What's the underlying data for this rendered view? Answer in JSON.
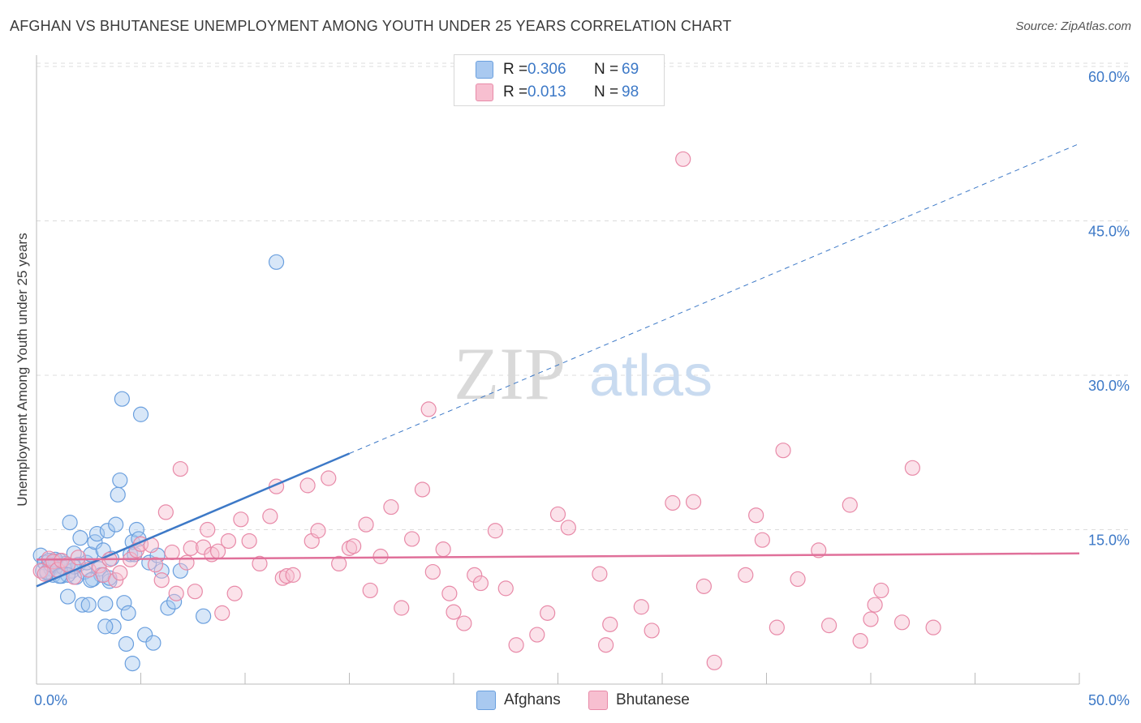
{
  "header": {
    "title": "AFGHAN VS BHUTANESE UNEMPLOYMENT AMONG YOUTH UNDER 25 YEARS CORRELATION CHART",
    "source": "Source: ZipAtlas.com"
  },
  "watermark": {
    "zip": "ZIP",
    "atlas": "atlas"
  },
  "legend": {
    "series": [
      {
        "r_label": "R =",
        "r_value": "0.306",
        "n_label": "N =",
        "n_value": "69",
        "name": "Afghans",
        "fill": "#a9c9f0",
        "stroke": "#6a9fde"
      },
      {
        "r_label": "R =",
        "r_value": "0.013",
        "n_label": "N =",
        "n_value": "98",
        "name": "Bhutanese",
        "fill": "#f7bfd0",
        "stroke": "#e88aa8"
      }
    ]
  },
  "chart_data": {
    "type": "scatter",
    "title": "AFGHAN VS BHUTANESE UNEMPLOYMENT AMONG YOUTH UNDER 25 YEARS CORRELATION CHART",
    "xlabel": "",
    "ylabel": "Unemployment Among Youth under 25 years",
    "xlim": [
      0,
      50
    ],
    "ylim": [
      0,
      60
    ],
    "x_tick_labels": [
      "0.0%",
      "50.0%"
    ],
    "y_ticks": [
      15,
      30,
      45,
      60
    ],
    "y_tick_labels": [
      "15.0%",
      "30.0%",
      "45.0%",
      "60.0%"
    ],
    "grid": true,
    "legend_placement": "top-center",
    "series": [
      {
        "name": "Afghans",
        "color": "#3d79c7",
        "trend": {
          "x": [
            0,
            50
          ],
          "y": [
            9.5,
            52.5
          ],
          "solid_until_x": 15
        },
        "points": [
          [
            0.2,
            12.5
          ],
          [
            0.3,
            11
          ],
          [
            0.4,
            11.8
          ],
          [
            0.5,
            10.8
          ],
          [
            0.6,
            12
          ],
          [
            0.7,
            11.2
          ],
          [
            0.8,
            10.6
          ],
          [
            0.9,
            11.9
          ],
          [
            1.0,
            11.5
          ],
          [
            1.1,
            12
          ],
          [
            1.2,
            10.5
          ],
          [
            1.3,
            11.3
          ],
          [
            1.4,
            11.7
          ],
          [
            1.5,
            8.5
          ],
          [
            1.6,
            15.7
          ],
          [
            1.7,
            11
          ],
          [
            1.8,
            12.7
          ],
          [
            1.9,
            10.4
          ],
          [
            2.0,
            11.6
          ],
          [
            2.1,
            14.2
          ],
          [
            2.2,
            7.7
          ],
          [
            2.3,
            10.9
          ],
          [
            2.4,
            11.8
          ],
          [
            2.5,
            7.7
          ],
          [
            2.6,
            12.6
          ],
          [
            2.7,
            10.2
          ],
          [
            2.8,
            13.8
          ],
          [
            2.9,
            14.6
          ],
          [
            3.0,
            11.2
          ],
          [
            3.1,
            10.6
          ],
          [
            3.2,
            13
          ],
          [
            3.3,
            7.8
          ],
          [
            3.4,
            14.9
          ],
          [
            3.5,
            10
          ],
          [
            3.6,
            12.2
          ],
          [
            3.7,
            5.6
          ],
          [
            3.8,
            15.5
          ],
          [
            3.9,
            18.4
          ],
          [
            4.0,
            19.8
          ],
          [
            4.1,
            27.7
          ],
          [
            4.2,
            7.9
          ],
          [
            4.3,
            3.9
          ],
          [
            4.4,
            6.9
          ],
          [
            4.5,
            12.6
          ],
          [
            4.6,
            13.8
          ],
          [
            4.7,
            12.6
          ],
          [
            4.8,
            15
          ],
          [
            4.9,
            14.1
          ],
          [
            5.0,
            26.2
          ],
          [
            5.2,
            4.8
          ],
          [
            5.4,
            11.8
          ],
          [
            5.6,
            4
          ],
          [
            5.8,
            12.5
          ],
          [
            6.0,
            11
          ],
          [
            6.3,
            7.4
          ],
          [
            6.6,
            8
          ],
          [
            6.9,
            11
          ],
          [
            8.0,
            6.6
          ],
          [
            11.5,
            41
          ],
          [
            3.3,
            5.6
          ],
          [
            4.6,
            2
          ],
          [
            2.6,
            10.1
          ],
          [
            1.8,
            11.4
          ],
          [
            0.9,
            12.1
          ],
          [
            1.5,
            10.6
          ],
          [
            0.5,
            10.9
          ],
          [
            0.7,
            11.6
          ],
          [
            1.1,
            10.5
          ],
          [
            3.5,
            10.3
          ]
        ]
      },
      {
        "name": "Bhutanese",
        "color": "#e0709a",
        "trend": {
          "x": [
            0,
            50
          ],
          "y": [
            12.1,
            12.7
          ]
        },
        "points": [
          [
            0.2,
            11
          ],
          [
            0.4,
            10.7
          ],
          [
            0.6,
            12.2
          ],
          [
            0.8,
            11.9
          ],
          [
            1.0,
            11.1
          ],
          [
            1.2,
            12
          ],
          [
            1.5,
            11.6
          ],
          [
            1.8,
            10.4
          ],
          [
            2.0,
            12.3
          ],
          [
            2.5,
            11.1
          ],
          [
            3.0,
            11.5
          ],
          [
            3.2,
            10.6
          ],
          [
            3.5,
            12.1
          ],
          [
            3.8,
            10.1
          ],
          [
            4.0,
            10.8
          ],
          [
            4.5,
            12.1
          ],
          [
            4.8,
            13
          ],
          [
            5.0,
            13.6
          ],
          [
            5.5,
            13.5
          ],
          [
            5.7,
            11.6
          ],
          [
            6.0,
            10.1
          ],
          [
            6.2,
            16.7
          ],
          [
            6.5,
            12.8
          ],
          [
            6.7,
            8.8
          ],
          [
            6.9,
            20.9
          ],
          [
            7.2,
            11.8
          ],
          [
            7.4,
            13.2
          ],
          [
            7.6,
            9
          ],
          [
            8.0,
            13.3
          ],
          [
            8.2,
            15
          ],
          [
            8.4,
            12.6
          ],
          [
            8.7,
            12.9
          ],
          [
            8.9,
            6.9
          ],
          [
            9.2,
            13.9
          ],
          [
            9.5,
            8.8
          ],
          [
            9.8,
            16
          ],
          [
            10.2,
            13.9
          ],
          [
            10.7,
            11.7
          ],
          [
            11.2,
            16.3
          ],
          [
            11.5,
            19.2
          ],
          [
            11.8,
            10.3
          ],
          [
            12.0,
            10.5
          ],
          [
            12.3,
            10.6
          ],
          [
            13.0,
            19.3
          ],
          [
            13.2,
            13.9
          ],
          [
            13.5,
            14.9
          ],
          [
            14.0,
            20
          ],
          [
            14.5,
            11.7
          ],
          [
            15.0,
            13.2
          ],
          [
            15.2,
            13.4
          ],
          [
            15.8,
            15.5
          ],
          [
            16.0,
            9.1
          ],
          [
            16.5,
            12.4
          ],
          [
            17.0,
            17.2
          ],
          [
            17.5,
            7.4
          ],
          [
            18.0,
            14.1
          ],
          [
            18.5,
            18.9
          ],
          [
            18.8,
            26.7
          ],
          [
            19.0,
            10.9
          ],
          [
            19.5,
            13.1
          ],
          [
            19.8,
            8.8
          ],
          [
            20.0,
            7
          ],
          [
            20.5,
            5.9
          ],
          [
            21.0,
            10.6
          ],
          [
            21.3,
            9.8
          ],
          [
            22.0,
            14.9
          ],
          [
            22.5,
            9.3
          ],
          [
            23.0,
            3.8
          ],
          [
            24.0,
            4.8
          ],
          [
            24.5,
            6.9
          ],
          [
            25.0,
            16.5
          ],
          [
            25.5,
            15.2
          ],
          [
            27.0,
            10.7
          ],
          [
            27.3,
            3.8
          ],
          [
            27.5,
            5.8
          ],
          [
            29.0,
            7.5
          ],
          [
            29.5,
            5.2
          ],
          [
            30.5,
            17.6
          ],
          [
            31.0,
            51
          ],
          [
            31.5,
            17.7
          ],
          [
            32.0,
            9.5
          ],
          [
            32.5,
            2.1
          ],
          [
            34.0,
            10.6
          ],
          [
            34.5,
            16.4
          ],
          [
            34.8,
            14
          ],
          [
            35.5,
            5.5
          ],
          [
            35.8,
            22.7
          ],
          [
            36.5,
            10.2
          ],
          [
            37.5,
            13
          ],
          [
            38.0,
            5.7
          ],
          [
            39.0,
            17.4
          ],
          [
            39.5,
            4.2
          ],
          [
            40.0,
            6.3
          ],
          [
            40.2,
            7.7
          ],
          [
            40.5,
            9.1
          ],
          [
            41.5,
            6
          ],
          [
            42.0,
            21
          ],
          [
            43.0,
            5.5
          ]
        ]
      }
    ]
  }
}
